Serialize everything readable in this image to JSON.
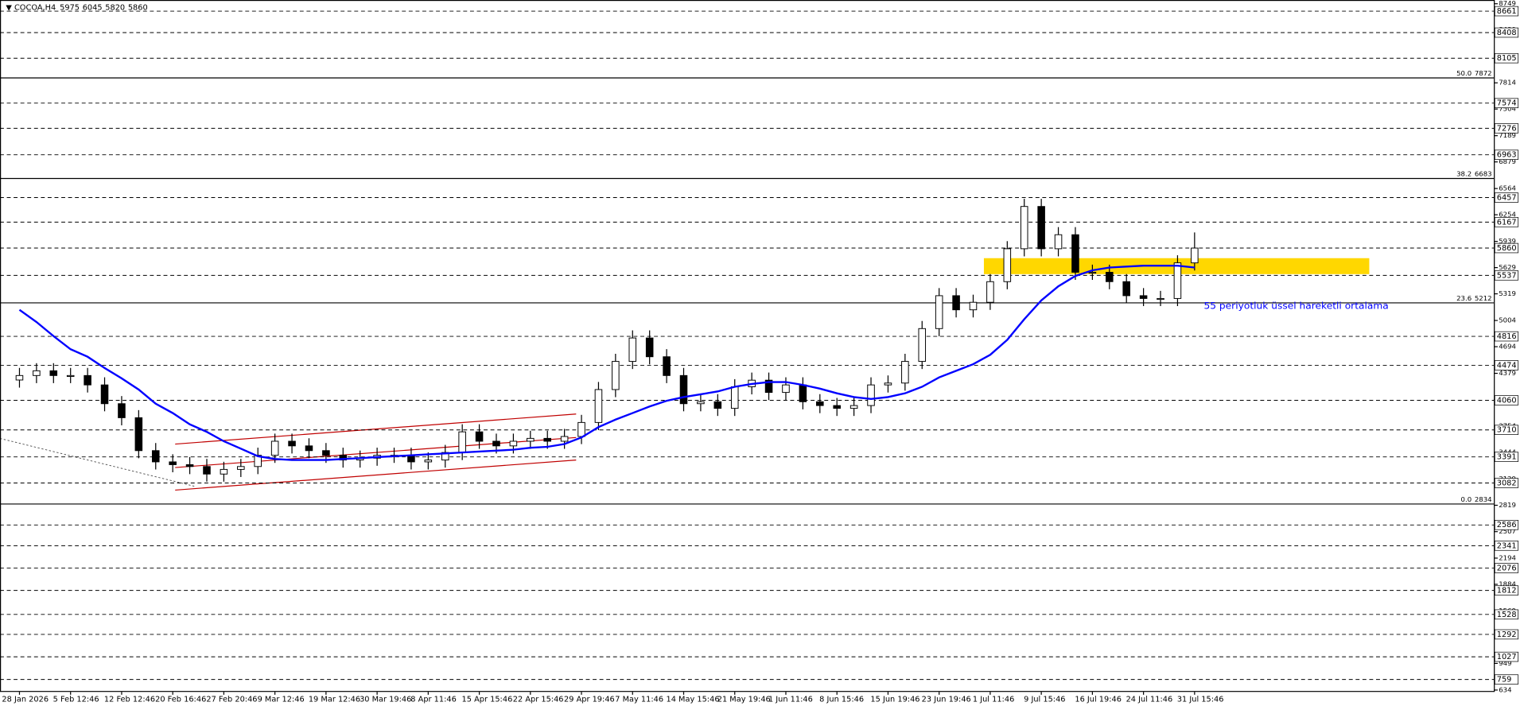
{
  "chart_data": {
    "type": "candlestick",
    "symbol": "COCOA,H4",
    "quote": [
      5975,
      6045,
      5820,
      5860
    ],
    "categories": [
      "28 Jan 2026",
      null,
      null,
      "5 Feb 12:46",
      null,
      null,
      "12 Feb 12:46",
      null,
      null,
      "20 Feb 16:46",
      null,
      null,
      "27 Feb 20:46",
      null,
      null,
      "9 Mar 12:46",
      null,
      null,
      "19 Mar 12:46",
      null,
      null,
      "30 Mar 19:46",
      null,
      null,
      "8 Apr 11:46",
      null,
      null,
      "15 Apr 15:46",
      null,
      null,
      "22 Apr 15:46",
      null,
      null,
      "29 Apr 19:46",
      null,
      null,
      "7 May 11:46",
      null,
      null,
      "14 May 15:46",
      null,
      null,
      "21 May 19:46",
      null,
      null,
      "1 Jun 11:46",
      null,
      null,
      "8 Jun 15:46",
      null,
      null,
      "15 Jun 19:46",
      null,
      null,
      "23 Jun 19:46",
      null,
      null,
      "1 Jul 11:46",
      null,
      null,
      "9 Jul 15:46",
      null,
      null,
      "16 Jul 19:46",
      null,
      null,
      "24 Jul 11:46",
      null,
      null,
      "31 Jul 15:46"
    ],
    "open": [
      4300,
      4353,
      4409,
      4353,
      4353,
      4242,
      4020,
      3854,
      3465,
      3332,
      3299,
      3277,
      3188,
      3243,
      3277,
      3410,
      3576,
      3521,
      3465,
      3410,
      3354,
      3376,
      3410,
      3410,
      3332,
      3354,
      3443,
      3687,
      3576,
      3521,
      3576,
      3610,
      3576,
      3632,
      3798,
      4187,
      4520,
      4797,
      4575,
      4353,
      4020,
      4043,
      3965,
      4220,
      4298,
      4153,
      4242,
      4043,
      3998,
      3965,
      3998,
      4242,
      4264,
      4520,
      4908,
      5297,
      5130,
      5219,
      5463,
      5852,
      6352,
      5852,
      6018,
      5574,
      5574,
      5463,
      5297,
      5264,
      5264,
      5685
    ],
    "high": [
      4443,
      4499,
      4499,
      4443,
      4443,
      4332,
      4110,
      3944,
      3555,
      3422,
      3389,
      3367,
      3333,
      3367,
      3500,
      3666,
      3666,
      3611,
      3555,
      3500,
      3466,
      3500,
      3500,
      3500,
      3444,
      3533,
      3777,
      3777,
      3666,
      3666,
      3700,
      3700,
      3722,
      3888,
      4277,
      4610,
      4887,
      4887,
      4665,
      4443,
      4133,
      4133,
      4310,
      4388,
      4388,
      4332,
      4332,
      4133,
      4088,
      4088,
      4332,
      4354,
      4610,
      4998,
      5387,
      5387,
      5309,
      5553,
      5942,
      6442,
      6442,
      6108,
      6108,
      5664,
      5664,
      5553,
      5387,
      5354,
      5775,
      6045
    ],
    "low": [
      4210,
      4263,
      4263,
      4263,
      4152,
      3930,
      3764,
      3375,
      3242,
      3209,
      3187,
      3098,
      3098,
      3153,
      3187,
      3320,
      3431,
      3375,
      3320,
      3264,
      3264,
      3286,
      3320,
      3242,
      3242,
      3264,
      3353,
      3486,
      3431,
      3431,
      3486,
      3486,
      3486,
      3542,
      3708,
      4097,
      4430,
      4485,
      4263,
      3930,
      3930,
      3875,
      3875,
      4130,
      4063,
      4063,
      3953,
      3908,
      3875,
      3875,
      3908,
      4152,
      4174,
      4430,
      4818,
      5040,
      5040,
      5129,
      5373,
      5762,
      5762,
      5762,
      5484,
      5484,
      5373,
      5207,
      5174,
      5174,
      5174,
      5595
    ],
    "close": [
      4353,
      4409,
      4353,
      4353,
      4242,
      4020,
      3854,
      3465,
      3332,
      3299,
      3277,
      3188,
      3243,
      3277,
      3410,
      3576,
      3521,
      3465,
      3410,
      3354,
      3376,
      3410,
      3410,
      3332,
      3354,
      3443,
      3687,
      3576,
      3521,
      3576,
      3610,
      3576,
      3632,
      3798,
      4187,
      4520,
      4797,
      4575,
      4353,
      4020,
      4043,
      3965,
      4220,
      4298,
      4153,
      4242,
      4043,
      3998,
      3965,
      3998,
      4242,
      4264,
      4520,
      4908,
      5297,
      5130,
      5219,
      5463,
      5852,
      6352,
      5852,
      6018,
      5574,
      5574,
      5463,
      5297,
      5264,
      5264,
      5685,
      5860
    ],
    "up_color": "#ffffff",
    "down_color": "#000000",
    "ema": {
      "color": "#0000ff",
      "values": [
        5130,
        4986,
        4819,
        4664,
        4575,
        4442,
        4320,
        4187,
        4020,
        3909,
        3776,
        3687,
        3576,
        3488,
        3399,
        3366,
        3354,
        3354,
        3354,
        3366,
        3376,
        3388,
        3399,
        3410,
        3421,
        3432,
        3443,
        3454,
        3465,
        3476,
        3499,
        3510,
        3543,
        3621,
        3743,
        3832,
        3909,
        3987,
        4054,
        4098,
        4131,
        4165,
        4220,
        4253,
        4276,
        4276,
        4242,
        4198,
        4143,
        4098,
        4076,
        4098,
        4143,
        4220,
        4331,
        4409,
        4487,
        4598,
        4775,
        5019,
        5241,
        5408,
        5530,
        5597,
        5630,
        5641,
        5652,
        5652,
        5652,
        5630
      ]
    },
    "annotation": "55 periyotluk üssel hareketli ortalama",
    "hlines": [
      8661,
      8408,
      8105,
      7574,
      7276,
      6963,
      6457,
      6167,
      5860,
      5537,
      4816,
      4474,
      4060,
      3710,
      3391,
      3082,
      2586,
      2341,
      2076,
      1812,
      1528,
      1292,
      1027,
      759
    ],
    "fibs": [
      {
        "level": "0.0",
        "value": 2834
      },
      {
        "level": "23.6",
        "value": 5212
      },
      {
        "level": "38.2",
        "value": 6683
      },
      {
        "level": "50.0",
        "value": 7872
      }
    ],
    "ylim": [
      634,
      8749
    ],
    "yticks": [
      634,
      949,
      1259,
      1569,
      1884,
      2194,
      2507,
      2819,
      3129,
      3444,
      3754,
      4069,
      4379,
      4694,
      5004,
      5319,
      5629,
      5939,
      6254,
      6564,
      6879,
      7189,
      7504,
      7814,
      8124,
      8439,
      8749
    ],
    "grid": false
  }
}
